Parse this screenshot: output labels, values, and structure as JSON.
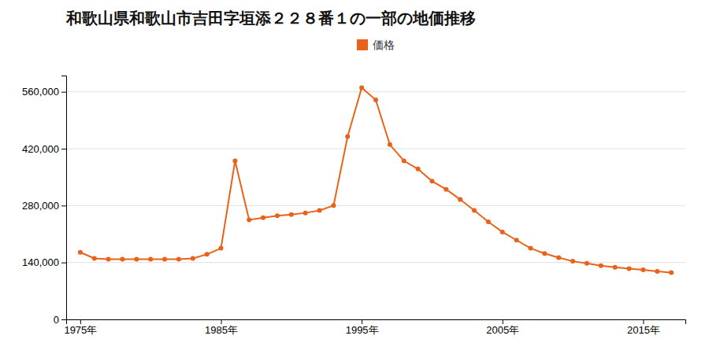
{
  "chart_data": {
    "type": "line",
    "title": "和歌山県和歌山市吉田字垣添２２８番１の一部の地価推移",
    "x": [
      1975,
      1976,
      1977,
      1978,
      1979,
      1980,
      1981,
      1982,
      1983,
      1984,
      1985,
      1986,
      1987,
      1988,
      1989,
      1990,
      1991,
      1992,
      1993,
      1994,
      1995,
      1996,
      1997,
      1998,
      1999,
      2000,
      2001,
      2002,
      2003,
      2004,
      2005,
      2006,
      2007,
      2008,
      2009,
      2010,
      2011,
      2012,
      2013,
      2014,
      2015,
      2016,
      2017
    ],
    "series": [
      {
        "name": "価格",
        "color": "#e8621a",
        "marker": "circle",
        "values": [
          165000,
          150000,
          148000,
          148000,
          148000,
          148000,
          148000,
          148000,
          150000,
          160000,
          175000,
          390000,
          245000,
          250000,
          255000,
          258000,
          262000,
          268000,
          280000,
          450000,
          570000,
          540000,
          430000,
          390000,
          370000,
          340000,
          320000,
          295000,
          268000,
          240000,
          215000,
          195000,
          175000,
          162000,
          152000,
          143000,
          138000,
          132000,
          128000,
          125000,
          122000,
          118000,
          115000
        ]
      }
    ],
    "xlim": [
      1974,
      2018
    ],
    "xticks": [
      {
        "value": 1975,
        "label": "1975年"
      },
      {
        "value": 1985,
        "label": "1985年"
      },
      {
        "value": 1995,
        "label": "1995年"
      },
      {
        "value": 2005,
        "label": "2005年"
      },
      {
        "value": 2015,
        "label": "2015年"
      }
    ],
    "ylim": [
      0,
      600000
    ],
    "yticks": [
      0,
      {
        "value": 140000,
        "label": "140,000"
      },
      {
        "value": 280000,
        "label": "280,000"
      },
      {
        "value": 420000,
        "label": "420,000"
      },
      {
        "value": 560000,
        "label": "560,000"
      }
    ],
    "grid": true,
    "legend": "top"
  }
}
